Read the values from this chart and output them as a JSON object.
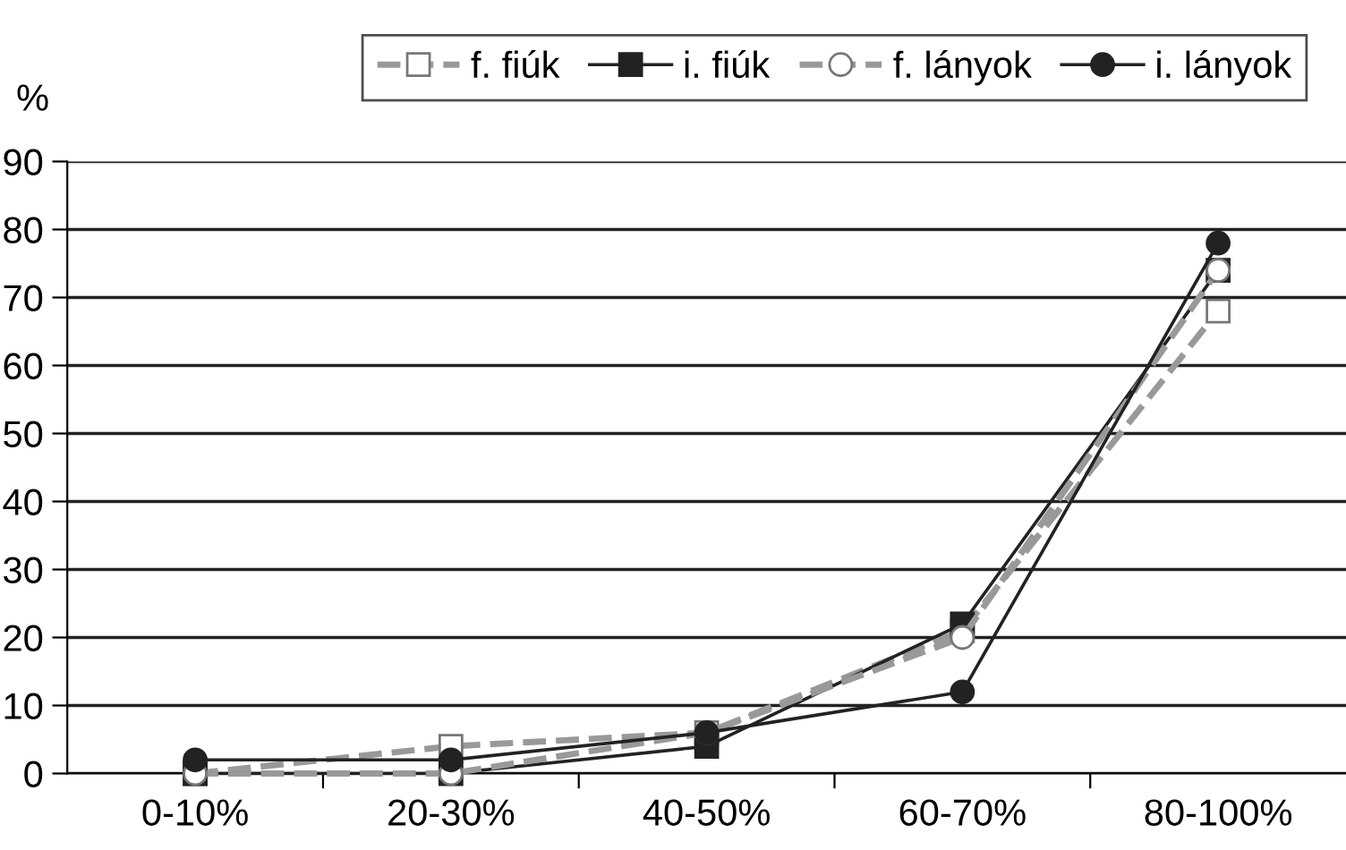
{
  "chart_data": {
    "type": "line",
    "ylabel": "%",
    "categories": [
      "0-10%",
      "20-30%",
      "40-50%",
      "60-70%",
      "80-100%"
    ],
    "series": [
      {
        "name": "f. fiúk",
        "color": "#999999",
        "values": [
          0,
          4,
          6,
          21,
          68
        ],
        "marker": "square",
        "line_style": "dashed"
      },
      {
        "name": "i. fiúk",
        "color": "#222222",
        "values": [
          0,
          0,
          4,
          22,
          74
        ],
        "marker": "square",
        "line_style": "solid"
      },
      {
        "name": "f. lányok",
        "color": "#999999",
        "values": [
          0,
          0,
          6,
          20,
          74
        ],
        "marker": "circle",
        "line_style": "dashed"
      },
      {
        "name": "i. lányok",
        "color": "#222222",
        "values": [
          2,
          2,
          6,
          12,
          78
        ],
        "marker": "circle",
        "line_style": "solid"
      }
    ],
    "ylim": [
      0,
      90
    ],
    "yticks": [
      0,
      10,
      20,
      30,
      40,
      50,
      60,
      70,
      80,
      90
    ],
    "grid": "y",
    "legend": "top"
  }
}
